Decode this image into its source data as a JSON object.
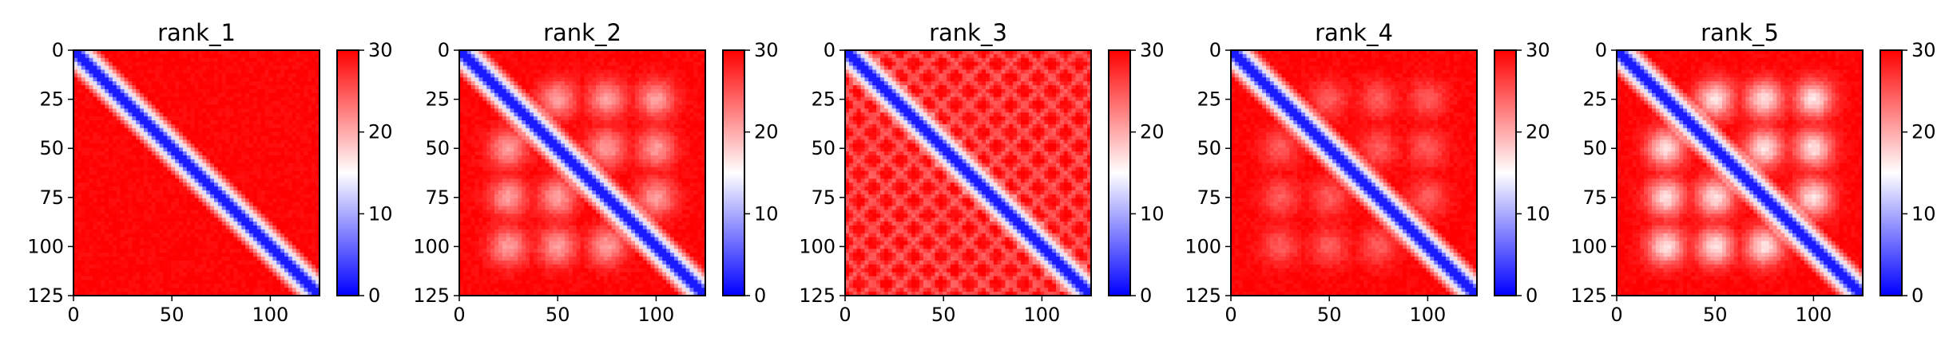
{
  "chart_data": [
    {
      "type": "heatmap",
      "title": "rank_1",
      "xlim": [
        0,
        125
      ],
      "ylim": [
        125,
        0
      ],
      "xticks": [
        "0",
        "50",
        "100"
      ],
      "yticks": [
        "0",
        "25",
        "50",
        "75",
        "100",
        "125"
      ],
      "colorbar": {
        "min": 0,
        "max": 30,
        "ticks": [
          "0",
          "10",
          "20",
          "30"
        ],
        "colormap": "bwr"
      },
      "diagonal_band_width": 4.0,
      "off_diagonal_pattern": "uniform"
    },
    {
      "type": "heatmap",
      "title": "rank_2",
      "xlim": [
        0,
        125
      ],
      "ylim": [
        125,
        0
      ],
      "xticks": [
        "0",
        "50",
        "100"
      ],
      "yticks": [
        "0",
        "25",
        "50",
        "75",
        "100",
        "125"
      ],
      "colorbar": {
        "min": 0,
        "max": 30,
        "ticks": [
          "0",
          "10",
          "20",
          "30"
        ],
        "colormap": "bwr"
      },
      "diagonal_band_width": 4.0,
      "off_diagonal_pattern": "periodic blobs"
    },
    {
      "type": "heatmap",
      "title": "rank_3",
      "xlim": [
        0,
        125
      ],
      "ylim": [
        125,
        0
      ],
      "xticks": [
        "0",
        "50",
        "100"
      ],
      "yticks": [
        "0",
        "25",
        "50",
        "75",
        "100",
        "125"
      ],
      "colorbar": {
        "min": 0,
        "max": 30,
        "ticks": [
          "0",
          "10",
          "20",
          "30"
        ],
        "colormap": "bwr"
      },
      "diagonal_band_width": 4.0,
      "off_diagonal_pattern": "lattice"
    },
    {
      "type": "heatmap",
      "title": "rank_4",
      "xlim": [
        0,
        125
      ],
      "ylim": [
        125,
        0
      ],
      "xticks": [
        "0",
        "50",
        "100"
      ],
      "yticks": [
        "0",
        "25",
        "50",
        "75",
        "100",
        "125"
      ],
      "colorbar": {
        "min": 0,
        "max": 30,
        "ticks": [
          "0",
          "10",
          "20",
          "30"
        ],
        "colormap": "bwr"
      },
      "diagonal_band_width": 4.0,
      "off_diagonal_pattern": "faint blobs"
    },
    {
      "type": "heatmap",
      "title": "rank_5",
      "xlim": [
        0,
        125
      ],
      "ylim": [
        125,
        0
      ],
      "xticks": [
        "0",
        "50",
        "100"
      ],
      "yticks": [
        "0",
        "25",
        "50",
        "75",
        "100",
        "125"
      ],
      "colorbar": {
        "min": 0,
        "max": 30,
        "ticks": [
          "0",
          "10",
          "20",
          "30"
        ],
        "colormap": "bwr"
      },
      "diagonal_band_width": 4.0,
      "off_diagonal_pattern": "strong periodic blobs"
    }
  ],
  "colors": {
    "low": "#0000ff",
    "mid": "#ffffff",
    "high": "#ff0000"
  }
}
